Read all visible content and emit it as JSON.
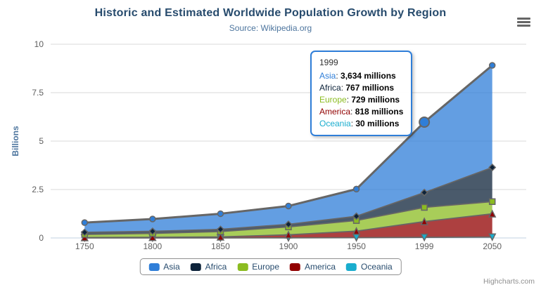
{
  "chart": {
    "title": "Historic and Estimated Worldwide Population Growth by Region",
    "subtitle": "Source: Wikipedia.org",
    "credits": "Highcharts.com",
    "menu_icon": "hamburger-menu-icon"
  },
  "chart_data": {
    "type": "area",
    "stacking": "normal",
    "title": "Historic and Estimated Worldwide Population Growth by Region",
    "subtitle": "Source: Wikipedia.org",
    "categories": [
      "1750",
      "1800",
      "1850",
      "1900",
      "1950",
      "1999",
      "2050"
    ],
    "xlabel": "",
    "ylabel": "Billions",
    "ylim": [
      0,
      10
    ],
    "yticks": [
      0,
      2.5,
      5,
      7.5,
      10
    ],
    "unit": "millions",
    "y_divisor": 1000,
    "grid": true,
    "legend_position": "bottom",
    "fill_opacity": 0.75,
    "line_color": "#666666",
    "series": [
      {
        "name": "Asia",
        "color": "#2f7ed8",
        "marker": "circle",
        "values": [
          502,
          635,
          809,
          947,
          1402,
          3634,
          5268
        ]
      },
      {
        "name": "Africa",
        "color": "#0d233a",
        "marker": "diamond",
        "values": [
          106,
          107,
          111,
          133,
          221,
          767,
          1766
        ]
      },
      {
        "name": "Europe",
        "color": "#8bbc21",
        "marker": "square",
        "values": [
          163,
          203,
          276,
          408,
          547,
          729,
          628
        ]
      },
      {
        "name": "America",
        "color": "#910000",
        "marker": "triangle",
        "values": [
          18,
          31,
          54,
          156,
          339,
          818,
          1201
        ]
      },
      {
        "name": "Oceania",
        "color": "#1aadce",
        "marker": "triangle-down",
        "values": [
          2,
          2,
          2,
          6,
          13,
          30,
          46
        ]
      }
    ]
  },
  "tooltip": {
    "header": "1999",
    "hover_series": "Asia",
    "category_index": 5,
    "rows": [
      {
        "name": "Asia",
        "color": "#2f7ed8",
        "value": "3,634 millions"
      },
      {
        "name": "Africa",
        "color": "#0d233a",
        "value": "767 millions"
      },
      {
        "name": "Europe",
        "color": "#8bbc21",
        "value": "729 millions"
      },
      {
        "name": "America",
        "color": "#910000",
        "value": "818 millions"
      },
      {
        "name": "Oceania",
        "color": "#1aadce",
        "value": "30 millions"
      }
    ]
  },
  "axis_style": {
    "label_color": "#606060",
    "grid_color": "#d8d8d8",
    "x_axis_line_color": "#c0d0e0",
    "y_title_color": "#4d759e"
  }
}
